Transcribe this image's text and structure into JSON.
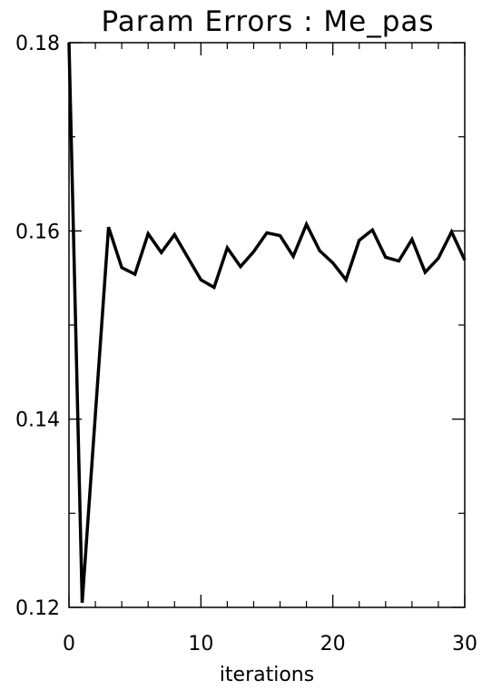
{
  "chart_data": {
    "type": "line",
    "title": "Param Errors : Me_pas",
    "xlabel": "iterations",
    "ylabel": "",
    "xlim": [
      0,
      30
    ],
    "ylim": [
      0.12,
      0.18
    ],
    "xticks": [
      0,
      10,
      20,
      30
    ],
    "xtick_labels": [
      "0",
      "10",
      "20",
      "30"
    ],
    "yticks": [
      0.12,
      0.14,
      0.16,
      0.18
    ],
    "ytick_labels": [
      "0.12",
      "0.14",
      "0.16",
      "0.18"
    ],
    "grid": false,
    "series": [
      {
        "x": [
          0,
          1,
          2,
          3,
          4,
          5,
          6,
          7,
          8,
          9,
          10,
          11,
          12,
          13,
          14,
          15,
          16,
          17,
          18,
          19,
          20,
          21,
          22,
          23,
          24,
          25,
          26,
          27,
          28,
          29,
          30
        ],
        "values": [
          0.18,
          0.1205,
          0.1405,
          0.1604,
          0.1561,
          0.1554,
          0.1597,
          0.1577,
          0.1596,
          0.1572,
          0.1548,
          0.154,
          0.1582,
          0.1562,
          0.1578,
          0.1598,
          0.1595,
          0.1573,
          0.1607,
          0.1579,
          0.1566,
          0.1548,
          0.159,
          0.1601,
          0.1572,
          0.1568,
          0.1591,
          0.1556,
          0.1571,
          0.1599,
          0.1569
        ],
        "color": "#000000"
      }
    ]
  }
}
